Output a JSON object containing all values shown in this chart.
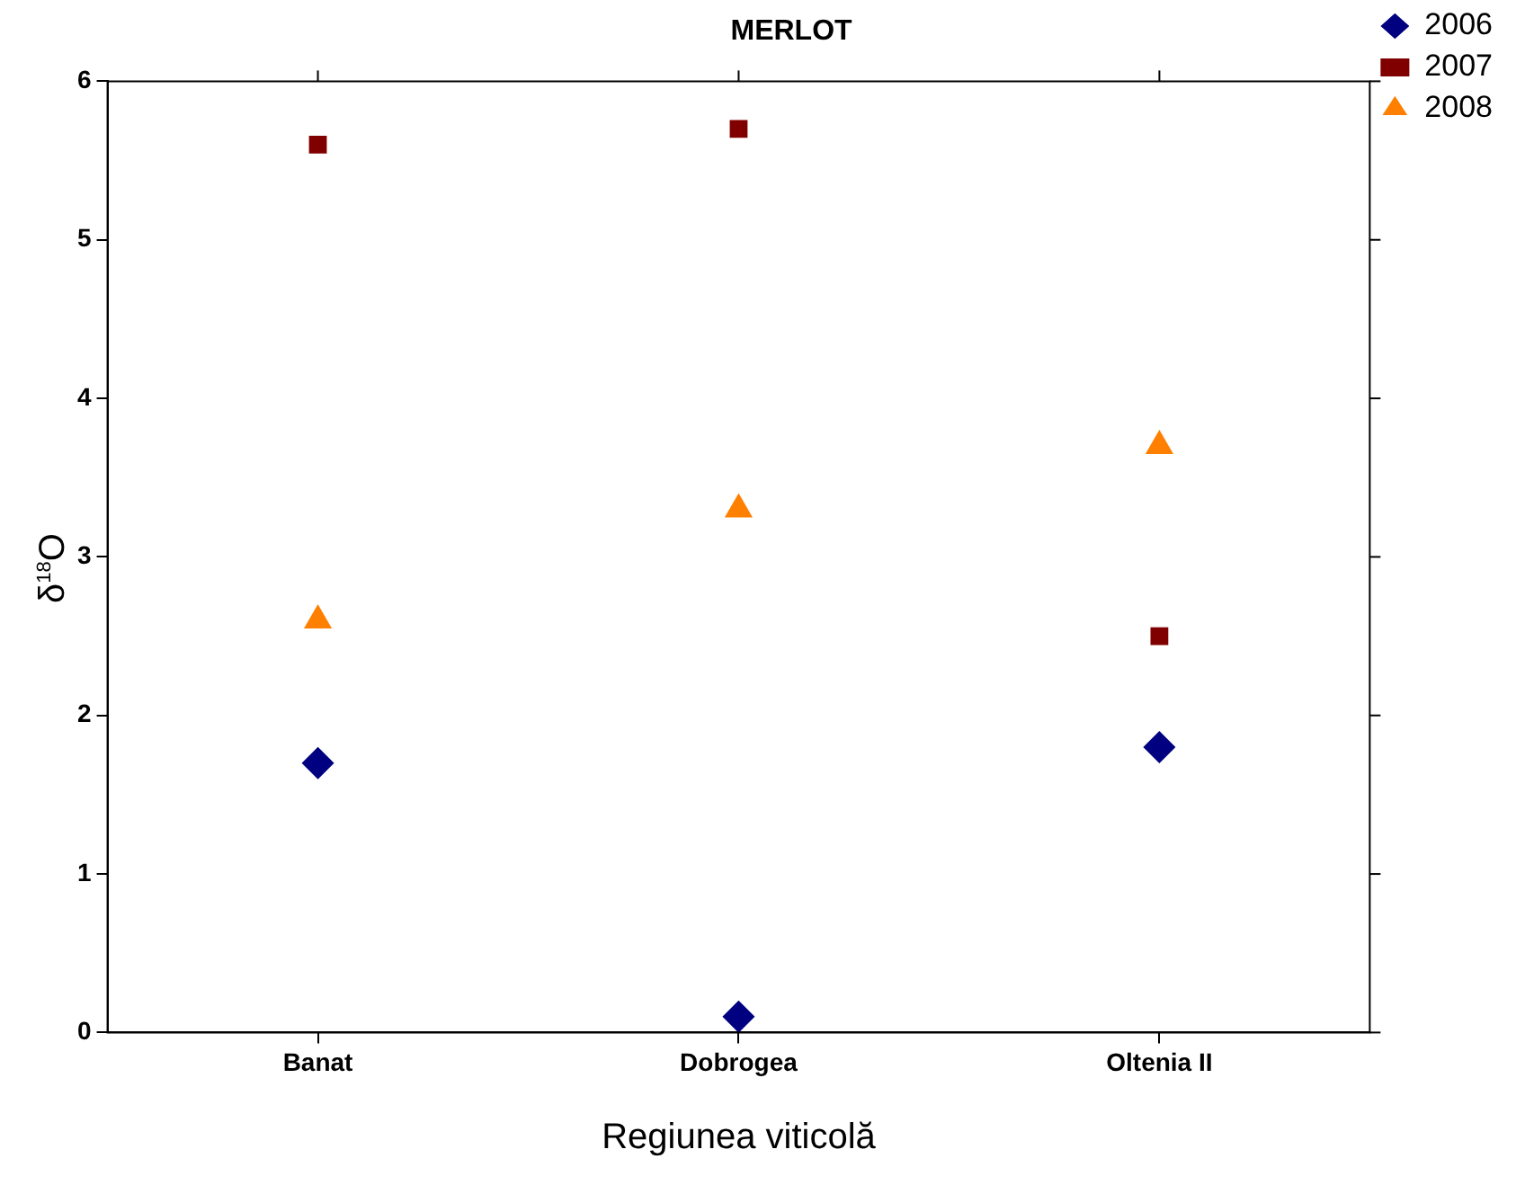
{
  "chart_data": {
    "type": "scatter",
    "title": "MERLOT",
    "xlabel": "Regiunea viticolă",
    "ylabel": "δ$^{18}$O",
    "categories": [
      "Banat",
      "Dobrogea",
      "Oltenia II"
    ],
    "series": [
      {
        "name": "2006",
        "color": "#000080",
        "marker": "diamond",
        "values": [
          1.7,
          0.1,
          1.8
        ]
      },
      {
        "name": "2007",
        "color": "#800000",
        "marker": "square",
        "values": [
          5.6,
          5.7,
          2.5
        ]
      },
      {
        "name": "2008",
        "color": "#ff8000",
        "marker": "triangle",
        "values": [
          2.6,
          3.3,
          3.7
        ]
      }
    ],
    "ylim": [
      0,
      6
    ],
    "yticks": [
      0,
      1,
      2,
      3,
      4,
      5,
      6
    ],
    "grid": false,
    "legend": "top right"
  }
}
